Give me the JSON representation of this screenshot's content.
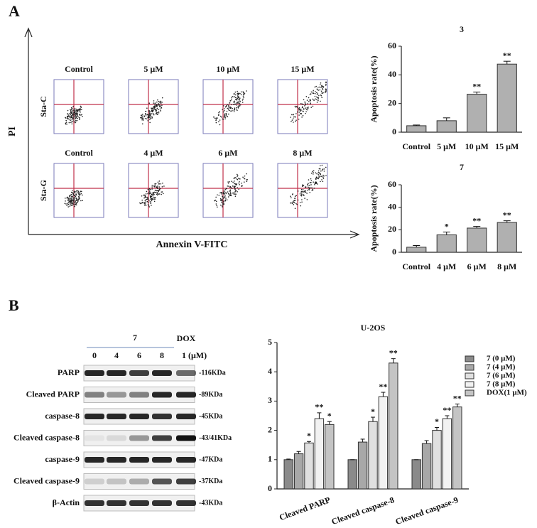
{
  "figure": {
    "panel_a": "A",
    "panel_b": "B",
    "flow": {
      "y_axis_label": "PI",
      "x_axis_label": "Annexin V-FITC",
      "rows": [
        {
          "label": "Sta-C",
          "columns": [
            "Control",
            "5 μM",
            "10 μM",
            "15 μM"
          ]
        },
        {
          "label": "Sta-G",
          "columns": [
            "Control",
            "4 μM",
            "6 μM",
            "8 μM"
          ]
        }
      ]
    },
    "blot": {
      "compound": "7",
      "control": "DOX",
      "lanes": [
        "0",
        "4",
        "6",
        "8",
        "1 (μM)"
      ],
      "rows": [
        {
          "protein": "PARP",
          "size": "-116KDa"
        },
        {
          "protein": "Cleaved PARP",
          "size": "-89KDa"
        },
        {
          "protein": "caspase-8",
          "size": "-45KDa"
        },
        {
          "protein": "Cleaved caspase-8",
          "size": "-43/41KDa"
        },
        {
          "protein": "caspase-9",
          "size": "-47KDa"
        },
        {
          "protein": "Cleaved caspase-9",
          "size": "-37KDa"
        },
        {
          "protein": "β-Actin",
          "size": "-43KDa"
        }
      ]
    }
  },
  "chart_data": [
    {
      "type": "bar",
      "title": "3",
      "ylabel": "Apoptosis rate(%)",
      "categories": [
        "Control",
        "5 μM",
        "10 μM",
        "15 μM"
      ],
      "values": [
        4.5,
        8,
        26.5,
        47.5
      ],
      "errors": [
        0.5,
        2,
        1.5,
        2
      ],
      "significance": [
        null,
        null,
        "**",
        "**"
      ],
      "color": "#b0b0b0",
      "ylim": [
        0,
        60
      ],
      "yticks": [
        0,
        20,
        40,
        60
      ]
    },
    {
      "type": "bar",
      "title": "7",
      "ylabel": "Apoptosis rate(%)",
      "categories": [
        "Control",
        "4 μM",
        "6 μM",
        "8 μM"
      ],
      "values": [
        4.5,
        15.5,
        21.5,
        26.5
      ],
      "errors": [
        1.5,
        2.5,
        1.5,
        1.5
      ],
      "significance": [
        null,
        "*",
        "**",
        "**"
      ],
      "color": "#b0b0b0",
      "ylim": [
        0,
        60
      ],
      "yticks": [
        0,
        20,
        40,
        60
      ]
    },
    {
      "type": "grouped_bar",
      "title": "U-2OS",
      "categories": [
        "Cleaved PARP",
        "Cleaved caspase-8",
        "Cleaved caspase-9"
      ],
      "series": [
        {
          "name": "7 (0 μM)",
          "color": "#8a8a8a",
          "values": [
            1,
            1,
            1
          ],
          "errors": [
            0.02,
            0,
            0
          ],
          "significance": [
            null,
            null,
            null
          ]
        },
        {
          "name": "7 (4 μM)",
          "color": "#a8a8a8",
          "values": [
            1.2,
            1.6,
            1.55
          ],
          "errors": [
            0.08,
            0.1,
            0.1
          ],
          "significance": [
            null,
            null,
            null
          ]
        },
        {
          "name": "7 (6 μM)",
          "color": "#e0e0e0",
          "values": [
            1.57,
            2.3,
            2.0
          ],
          "errors": [
            0.05,
            0.15,
            0.1
          ],
          "significance": [
            "*",
            "*",
            "*"
          ]
        },
        {
          "name": "7 (8 μM)",
          "color": "#f2f2f2",
          "values": [
            2.4,
            3.15,
            2.4
          ],
          "errors": [
            0.2,
            0.15,
            0.1
          ],
          "significance": [
            "**",
            "**",
            "**"
          ]
        },
        {
          "name": "DOX(1 μM)",
          "color": "#c4c4c4",
          "values": [
            2.2,
            4.3,
            2.8
          ],
          "errors": [
            0.1,
            0.15,
            0.1
          ],
          "significance": [
            "*",
            "**",
            "**"
          ]
        }
      ],
      "ylim": [
        0,
        5
      ],
      "yticks": [
        0,
        1,
        2,
        3,
        4,
        5
      ],
      "legend": "right"
    }
  ]
}
